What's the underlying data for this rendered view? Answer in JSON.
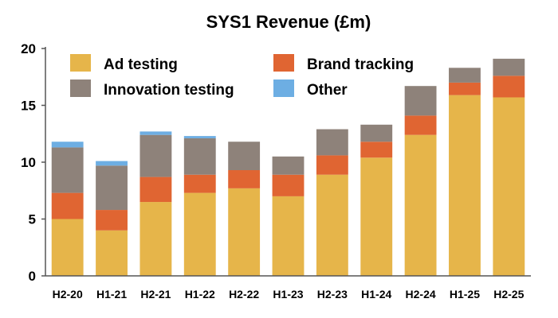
{
  "chart_data": {
    "type": "bar",
    "stacked": true,
    "title": "SYS1 Revenue (£m)",
    "xlabel": "",
    "ylabel": "",
    "ylim": [
      0,
      20
    ],
    "yticks": [
      0,
      5,
      10,
      15,
      20
    ],
    "grid": false,
    "legend_position": "top-left",
    "categories": [
      "H2-20",
      "H1-21",
      "H2-21",
      "H1-22",
      "H2-22",
      "H1-23",
      "H2-23",
      "H1-24",
      "H2-24",
      "H1-25",
      "H2-25"
    ],
    "series": [
      {
        "name": "Ad testing",
        "color": "#E6B54A",
        "values": [
          5.0,
          4.0,
          6.5,
          7.3,
          7.7,
          7.0,
          8.9,
          10.4,
          12.4,
          15.9,
          15.7
        ]
      },
      {
        "name": "Brand tracking",
        "color": "#E06532",
        "values": [
          2.3,
          1.8,
          2.2,
          1.6,
          1.6,
          1.9,
          1.7,
          1.4,
          1.7,
          1.1,
          1.9
        ]
      },
      {
        "name": "Innovation testing",
        "color": "#8E827A",
        "values": [
          4.0,
          3.9,
          3.7,
          3.2,
          2.5,
          1.6,
          2.3,
          1.5,
          2.6,
          1.3,
          1.5
        ]
      },
      {
        "name": "Other",
        "color": "#6DAEE3",
        "values": [
          0.5,
          0.4,
          0.3,
          0.2,
          0.0,
          0.0,
          0.0,
          0.0,
          0.0,
          0.0,
          0.0
        ]
      }
    ]
  }
}
